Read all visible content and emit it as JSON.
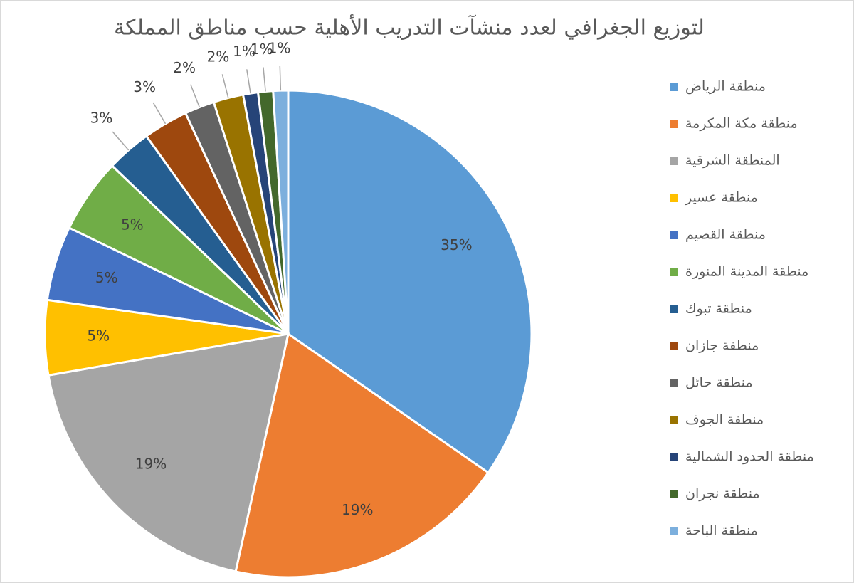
{
  "chart_data": {
    "type": "pie",
    "title": "لتوزيع الجغرافي لعدد منشآت التدريب الأهلية حسب مناطق المملكة",
    "categories": [
      "منطقة الرياض",
      "منطقة مكة المكرمة",
      "المنطقة الشرقية",
      "منطقة عسير",
      "منطقة القصيم",
      "منطقة المدينة المنورة",
      "منطقة تبوك",
      "منطقة جازان",
      "منطقة حائل",
      "منطقة الجوف",
      "منطقة الحدود الشمالية",
      "منطقة نجران",
      "منطقة الباحة"
    ],
    "values": [
      35,
      19,
      19,
      5,
      5,
      5,
      3,
      3,
      2,
      2,
      1,
      1,
      1
    ],
    "value_labels": [
      "35%",
      "19%",
      "19%",
      "5%",
      "5%",
      "5%",
      "3%",
      "3%",
      "2%",
      "2%",
      "1%",
      "1%",
      "1%"
    ],
    "colors": [
      "#5b9bd5",
      "#ed7d31",
      "#a5a5a5",
      "#ffc000",
      "#4472c4",
      "#70ad47",
      "#255e91",
      "#9e480e",
      "#636363",
      "#997300",
      "#264478",
      "#43682b",
      "#7cafdd"
    ],
    "legend": "right"
  }
}
